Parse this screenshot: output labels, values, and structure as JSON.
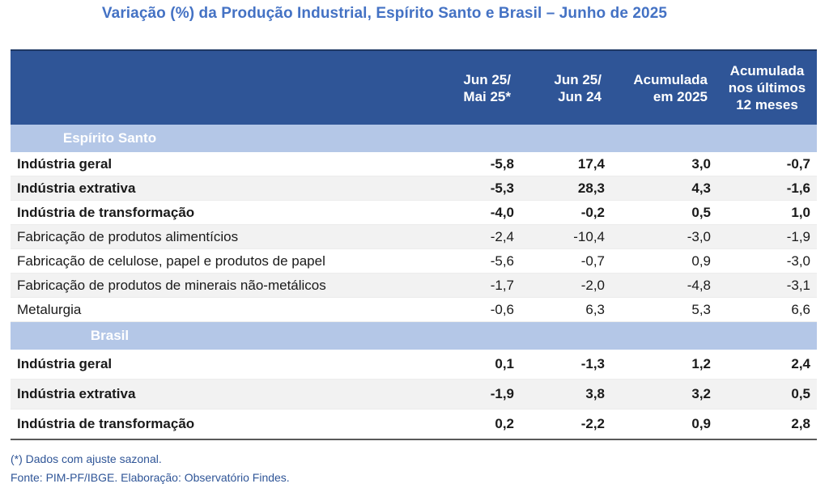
{
  "title": "Variação (%) da Produção Industrial, Espírito Santo e Brasil – Junho de 2025",
  "columns": [
    [
      "Jun 25/",
      "Mai 25*"
    ],
    [
      "Jun 25/",
      "Jun 24"
    ],
    [
      "Acumulada",
      "em 2025"
    ],
    [
      "Acumulada",
      "nos últimos",
      "12 meses"
    ]
  ],
  "sections": [
    {
      "name": "Espírito Santo",
      "rows": [
        {
          "label": "Indústria geral",
          "values": [
            "-5,8",
            "17,4",
            "3,0",
            "-0,7"
          ]
        },
        {
          "label": "Indústria extrativa",
          "values": [
            "-5,3",
            "28,3",
            "4,3",
            "-1,6"
          ]
        },
        {
          "label": "Indústria de transformação",
          "values": [
            "-4,0",
            "-0,2",
            "0,5",
            "1,0"
          ]
        },
        {
          "label": "Fabricação de produtos alimentícios",
          "values": [
            "-2,4",
            "-10,4",
            "-3,0",
            "-1,9"
          ]
        },
        {
          "label": "Fabricação de celulose, papel e produtos de papel",
          "values": [
            "-5,6",
            "-0,7",
            "0,9",
            "-3,0"
          ]
        },
        {
          "label": "Fabricação de produtos de minerais não-metálicos",
          "values": [
            "-1,7",
            "-2,0",
            "-4,8",
            "-3,1"
          ]
        },
        {
          "label": "Metalurgia",
          "values": [
            "-0,6",
            "6,3",
            "5,3",
            "6,6"
          ]
        }
      ]
    },
    {
      "name": "Brasil",
      "rows": [
        {
          "label": "Indústria geral",
          "values": [
            "0,1",
            "-1,3",
            "1,2",
            "2,4"
          ]
        },
        {
          "label": "Indústria extrativa",
          "values": [
            "-1,9",
            "3,8",
            "3,2",
            "0,5"
          ]
        },
        {
          "label": "Indústria de transformação",
          "values": [
            "0,2",
            "-2,2",
            "0,9",
            "2,8"
          ]
        }
      ]
    }
  ],
  "footnotes": [
    "(*) Dados com ajuste sazonal.",
    "Fonte: PIM-PF/IBGE. Elaboração: Observatório Findes."
  ]
}
